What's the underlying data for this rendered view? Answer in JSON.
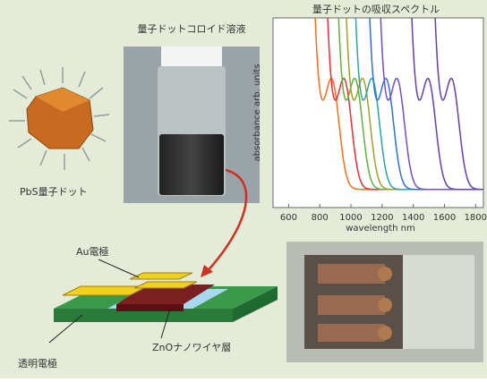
{
  "dot_label": "PbS量子ドット",
  "vial_label": "量子ドットコロイド溶液",
  "spectrum": {
    "title": "量子ドットの吸収スペクトル",
    "xlabel": "wavelength nm",
    "ylabel": "absorbance arb. units",
    "xlim": [
      500,
      1850
    ],
    "xticks": [
      600,
      800,
      1000,
      1200,
      1400,
      1600,
      1800
    ],
    "peaks": [
      880,
      960,
      1030,
      1080,
      1140,
      1230,
      1300,
      1500,
      1650
    ],
    "colors": [
      "#f07020",
      "#e03030",
      "#60b040",
      "#a0a030",
      "#30a0a0",
      "#3070d0",
      "#7050c0",
      "#6040b0",
      "#6040b0"
    ]
  },
  "device": {
    "electrode": "Au電極",
    "zno": "ZnOナノワイヤ層",
    "transparent": "透明電極"
  }
}
